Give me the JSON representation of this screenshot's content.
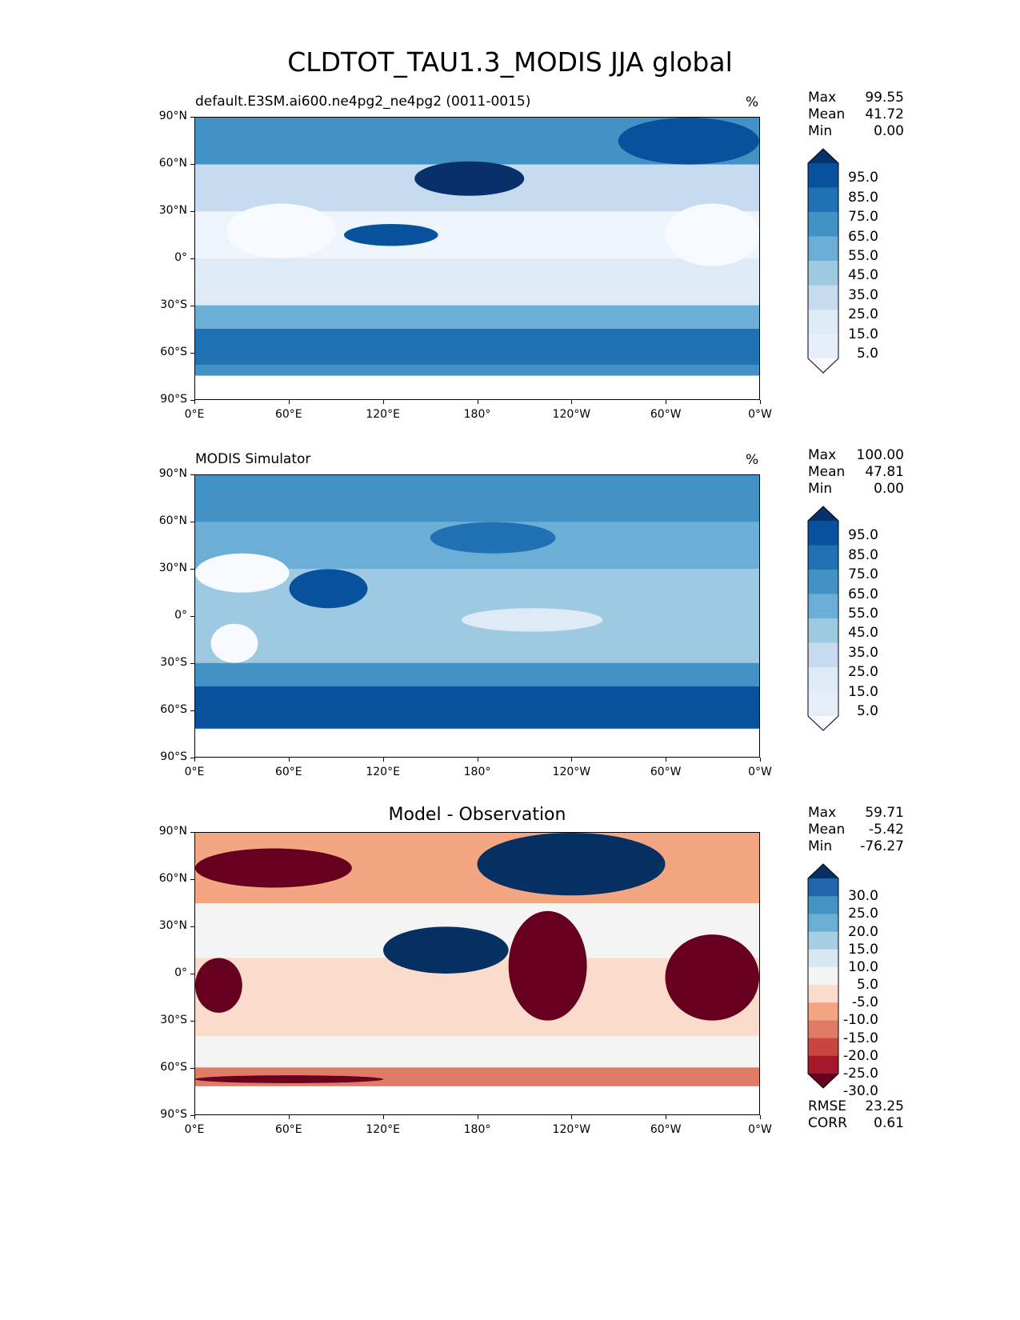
{
  "title": "CLDTOT_TAU1.3_MODIS JJA global",
  "chart_data": [
    {
      "type": "heatmap",
      "title": "default.E3SM.ai600.ne4pg2_ne4pg2 (0011-0015)",
      "units": "%",
      "stats": {
        "max_label": "Max",
        "max": "99.55",
        "mean_label": "Mean",
        "mean": "41.72",
        "min_label": "Min",
        "min": "0.00"
      },
      "colorbar": {
        "ticks": [
          "95.0",
          "85.0",
          "75.0",
          "65.0",
          "55.0",
          "45.0",
          "35.0",
          "25.0",
          "15.0",
          "5.0"
        ],
        "colors": [
          "#08306b",
          "#08519c",
          "#2171b5",
          "#4292c6",
          "#6baed6",
          "#9ecae1",
          "#c6dbef",
          "#deebf7",
          "#e6eff9",
          "#f7fbff"
        ]
      },
      "zonal_mean": [
        {
          "lat": [
            90,
            60
          ],
          "color": "#4292c6"
        },
        {
          "lat": [
            60,
            30
          ],
          "color": "#c6dbef"
        },
        {
          "lat": [
            30,
            0
          ],
          "color": "#eef4fb"
        },
        {
          "lat": [
            0,
            -30
          ],
          "color": "#deebf7"
        },
        {
          "lat": [
            -30,
            -45
          ],
          "color": "#6baed6"
        },
        {
          "lat": [
            -45,
            -68
          ],
          "color": "#2171b5"
        },
        {
          "lat": [
            -68,
            -75
          ],
          "color": "#4292c6"
        }
      ],
      "features": [
        {
          "lon": [
            95,
            155
          ],
          "lat": [
            8,
            22
          ],
          "color": "#08519c"
        },
        {
          "lon": [
            140,
            210
          ],
          "lat": [
            40,
            62
          ],
          "color": "#08306b"
        },
        {
          "lon": [
            270,
            360
          ],
          "lat": [
            60,
            90
          ],
          "color": "#08519c"
        },
        {
          "lon": [
            20,
            90
          ],
          "lat": [
            0,
            35
          ],
          "color": "#f7fbff"
        },
        {
          "lon": [
            300,
            360
          ],
          "lat": [
            -5,
            35
          ],
          "color": "#f7fbff"
        }
      ]
    },
    {
      "type": "heatmap",
      "title": "MODIS Simulator",
      "units": "%",
      "stats": {
        "max_label": "Max",
        "max": "100.00",
        "mean_label": "Mean",
        "mean": "47.81",
        "min_label": "Min",
        "min": "0.00"
      },
      "colorbar": {
        "ticks": [
          "95.0",
          "85.0",
          "75.0",
          "65.0",
          "55.0",
          "45.0",
          "35.0",
          "25.0",
          "15.0",
          "5.0"
        ],
        "colors": [
          "#08306b",
          "#08519c",
          "#2171b5",
          "#4292c6",
          "#6baed6",
          "#9ecae1",
          "#c6dbef",
          "#deebf7",
          "#e6eff9",
          "#f7fbff"
        ]
      },
      "zonal_mean": [
        {
          "lat": [
            90,
            60
          ],
          "color": "#4292c6"
        },
        {
          "lat": [
            60,
            30
          ],
          "color": "#6baed6"
        },
        {
          "lat": [
            30,
            0
          ],
          "color": "#9ecae1"
        },
        {
          "lat": [
            0,
            -30
          ],
          "color": "#9ecae1"
        },
        {
          "lat": [
            -30,
            -45
          ],
          "color": "#4292c6"
        },
        {
          "lat": [
            -45,
            -72
          ],
          "color": "#08519c"
        }
      ],
      "features": [
        {
          "lon": [
            0,
            60
          ],
          "lat": [
            15,
            40
          ],
          "color": "#f7fbff"
        },
        {
          "lon": [
            60,
            110
          ],
          "lat": [
            5,
            30
          ],
          "color": "#08519c"
        },
        {
          "lon": [
            150,
            230
          ],
          "lat": [
            40,
            60
          ],
          "color": "#2171b5"
        },
        {
          "lon": [
            170,
            260
          ],
          "lat": [
            -10,
            5
          ],
          "color": "#deebf7"
        },
        {
          "lon": [
            10,
            40
          ],
          "lat": [
            -30,
            -5
          ],
          "color": "#f7fbff"
        }
      ]
    },
    {
      "type": "heatmap",
      "title": "Model - Observation",
      "units": "",
      "stats": {
        "max_label": "Max",
        "max": "59.71",
        "mean_label": "Mean",
        "mean": "-5.42",
        "min_label": "Min",
        "min": "-76.27",
        "rmse_label": "RMSE",
        "rmse": "23.25",
        "corr_label": "CORR",
        "corr": "0.61"
      },
      "colorbar": {
        "ticks": [
          "30.0",
          "25.0",
          "20.0",
          "15.0",
          "10.0",
          "5.0",
          "-5.0",
          "-10.0",
          "-15.0",
          "-20.0",
          "-25.0",
          "-30.0"
        ],
        "colors": [
          "#053061",
          "#2166ac",
          "#4393c3",
          "#6baed6",
          "#a6cfe4",
          "#d7e8f2",
          "#f4f4f4",
          "#fbdccc",
          "#f4a582",
          "#e07b65",
          "#c84540",
          "#a5172a",
          "#67001f"
        ]
      },
      "zonal_mean": [
        {
          "lat": [
            90,
            45
          ],
          "color": "#f4a582"
        },
        {
          "lat": [
            45,
            10
          ],
          "color": "#f4f4f4"
        },
        {
          "lat": [
            10,
            -40
          ],
          "color": "#fbdccc"
        },
        {
          "lat": [
            -40,
            -60
          ],
          "color": "#f4f4f4"
        },
        {
          "lat": [
            -60,
            -72
          ],
          "color": "#e07b65"
        }
      ],
      "features": [
        {
          "lon": [
            0,
            100
          ],
          "lat": [
            55,
            80
          ],
          "color": "#67001f"
        },
        {
          "lon": [
            180,
            300
          ],
          "lat": [
            50,
            90
          ],
          "color": "#053061"
        },
        {
          "lon": [
            120,
            200
          ],
          "lat": [
            0,
            30
          ],
          "color": "#053061"
        },
        {
          "lon": [
            200,
            250
          ],
          "lat": [
            -30,
            40
          ],
          "color": "#67001f"
        },
        {
          "lon": [
            300,
            360
          ],
          "lat": [
            -30,
            25
          ],
          "color": "#67001f"
        },
        {
          "lon": [
            0,
            30
          ],
          "lat": [
            -25,
            10
          ],
          "color": "#67001f"
        },
        {
          "lon": [
            0,
            120
          ],
          "lat": [
            -70,
            -65
          ],
          "color": "#67001f"
        }
      ]
    }
  ],
  "axes": {
    "x_ticks": [
      "0°E",
      "60°E",
      "120°E",
      "180°",
      "120°W",
      "60°W",
      "0°W"
    ],
    "y_ticks": [
      "90°N",
      "60°N",
      "30°N",
      "0°",
      "30°S",
      "60°S",
      "90°S"
    ]
  }
}
